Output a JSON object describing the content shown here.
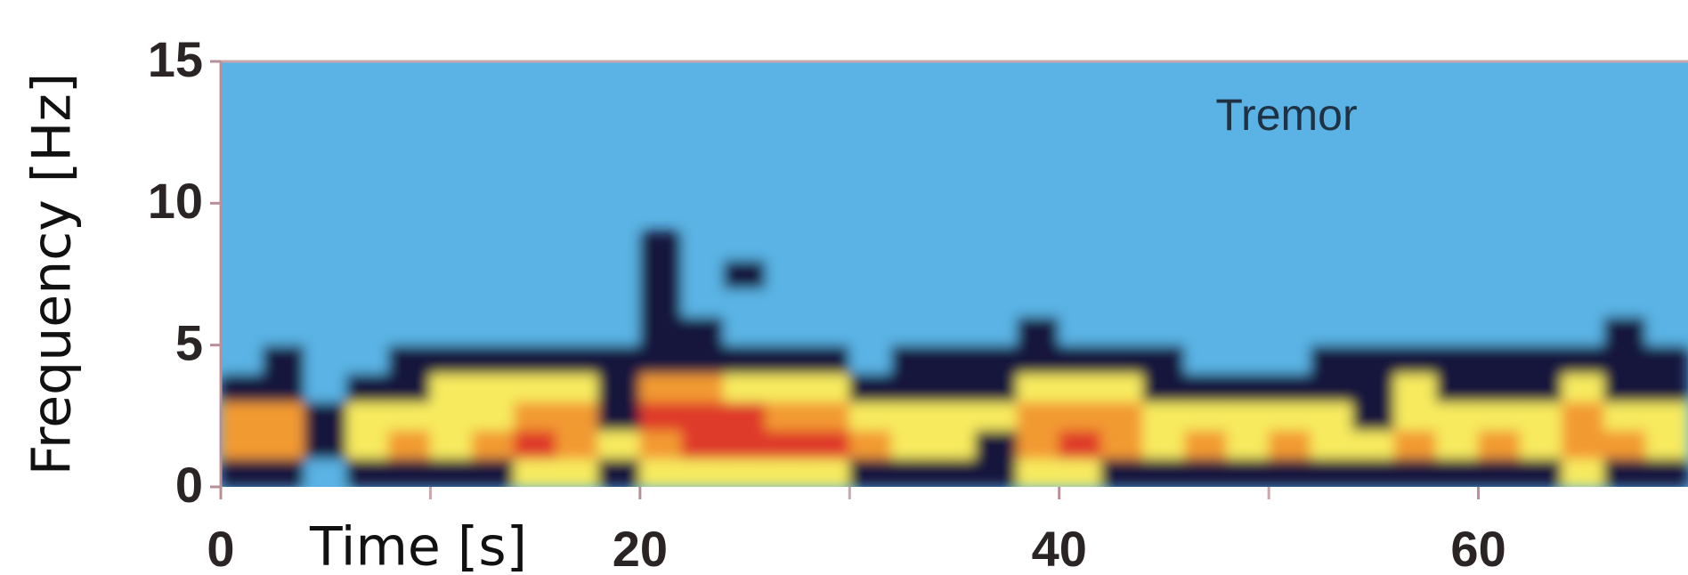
{
  "chart_data": {
    "type": "heatmap",
    "annotation": "Tremor",
    "x_label": "Time [s]",
    "y_label": "Frequency [Hz]",
    "xbins": [
      0,
      2,
      4,
      6,
      8,
      10,
      12,
      14,
      16,
      18,
      20,
      22,
      24,
      26,
      28,
      30,
      32,
      34,
      36,
      38,
      40,
      42,
      44,
      46,
      48,
      50,
      52,
      54,
      56,
      58,
      60,
      62,
      64,
      66,
      68,
      70
    ],
    "ybins": [
      0,
      1,
      2,
      3,
      4,
      5,
      6,
      7,
      8,
      9
    ],
    "z": [
      [
        1,
        1,
        0,
        1,
        1,
        1,
        1,
        2,
        2,
        1,
        2,
        2,
        2,
        2,
        2,
        1,
        1,
        1,
        1,
        2,
        2,
        1,
        1,
        1,
        1,
        1,
        1,
        1,
        1,
        1,
        1,
        1,
        2,
        1,
        1
      ],
      [
        3,
        3,
        1,
        2,
        3,
        2,
        3,
        4,
        3,
        2,
        3,
        4,
        4,
        4,
        4,
        3,
        2,
        2,
        1,
        3,
        4,
        3,
        2,
        3,
        2,
        3,
        2,
        2,
        3,
        2,
        3,
        2,
        3,
        3,
        2
      ],
      [
        3,
        3,
        1,
        2,
        2,
        2,
        2,
        3,
        3,
        1,
        4,
        4,
        4,
        3,
        3,
        2,
        2,
        2,
        2,
        3,
        3,
        3,
        2,
        2,
        2,
        2,
        2,
        1,
        2,
        2,
        2,
        2,
        3,
        2,
        2
      ],
      [
        1,
        1,
        0,
        1,
        1,
        2,
        2,
        2,
        2,
        1,
        3,
        3,
        2,
        2,
        2,
        1,
        1,
        1,
        1,
        2,
        2,
        2,
        1,
        1,
        1,
        1,
        1,
        1,
        2,
        1,
        1,
        1,
        2,
        1,
        1
      ],
      [
        0,
        1,
        0,
        0,
        1,
        1,
        1,
        1,
        1,
        1,
        1,
        1,
        1,
        1,
        1,
        0,
        1,
        1,
        1,
        1,
        1,
        1,
        1,
        0,
        0,
        0,
        1,
        1,
        1,
        1,
        1,
        1,
        1,
        1,
        1
      ],
      [
        0,
        0,
        0,
        0,
        0,
        0,
        0,
        0,
        0,
        0,
        1,
        1,
        0,
        0,
        0,
        0,
        0,
        0,
        0,
        1,
        0,
        0,
        0,
        0,
        0,
        0,
        0,
        0,
        0,
        0,
        0,
        0,
        0,
        1,
        0
      ],
      [
        0,
        0,
        0,
        0,
        0,
        0,
        0,
        0,
        0,
        0,
        1,
        0,
        0,
        0,
        0,
        0,
        0,
        0,
        0,
        0,
        0,
        0,
        0,
        0,
        0,
        0,
        0,
        0,
        0,
        0,
        0,
        0,
        0,
        0,
        0
      ],
      [
        0,
        0,
        0,
        0,
        0,
        0,
        0,
        0,
        0,
        0,
        1,
        0,
        1,
        0,
        0,
        0,
        0,
        0,
        0,
        0,
        0,
        0,
        0,
        0,
        0,
        0,
        0,
        0,
        0,
        0,
        0,
        0,
        0,
        0,
        0
      ],
      [
        0,
        0,
        0,
        0,
        0,
        0,
        0,
        0,
        0,
        0,
        1,
        0,
        0,
        0,
        0,
        0,
        0,
        0,
        0,
        0,
        0,
        0,
        0,
        0,
        0,
        0,
        0,
        0,
        0,
        0,
        0,
        0,
        0,
        0,
        0
      ]
    ],
    "colors": [
      "#5ab3e4",
      "#16163e",
      "#f7ea5e",
      "#f29a30",
      "#df3a2a"
    ],
    "xlim": [
      0,
      70
    ],
    "ylim": [
      0,
      15
    ],
    "xticks": [
      0,
      20,
      40,
      60
    ],
    "xminorticks": [
      10,
      30,
      50
    ],
    "yticks": [
      0,
      5,
      10,
      15
    ]
  }
}
